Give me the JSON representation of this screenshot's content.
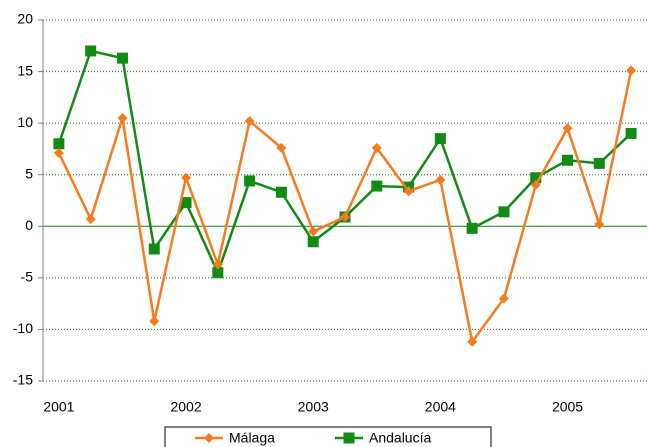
{
  "chart_data": {
    "type": "line",
    "categories": [
      "2001",
      null,
      null,
      null,
      "2002",
      null,
      null,
      null,
      "2003",
      null,
      null,
      null,
      "2004",
      null,
      null,
      null,
      "2005",
      null,
      null
    ],
    "series": [
      {
        "name": "Málaga",
        "color": "#f47b20",
        "marker": "diamond",
        "values": [
          7.1,
          0.7,
          10.5,
          -9.2,
          4.7,
          -3.7,
          10.2,
          7.6,
          -0.5,
          0.9,
          7.6,
          3.4,
          4.5,
          -11.2,
          -7.0,
          4.0,
          9.5,
          0.2,
          15.1
        ]
      },
      {
        "name": "Andalucía",
        "color": "#138a13",
        "marker": "square",
        "values": [
          8.0,
          17.0,
          16.3,
          -2.2,
          2.3,
          -4.5,
          4.4,
          3.3,
          -1.5,
          0.9,
          3.9,
          3.8,
          8.5,
          -0.2,
          1.4,
          4.7,
          6.4,
          6.1,
          9.0
        ]
      }
    ],
    "ylim": [
      -15,
      20
    ],
    "yticks": [
      -15,
      -10,
      -5,
      0,
      5,
      10,
      15,
      20
    ],
    "grid": true,
    "legend": "bottom"
  }
}
